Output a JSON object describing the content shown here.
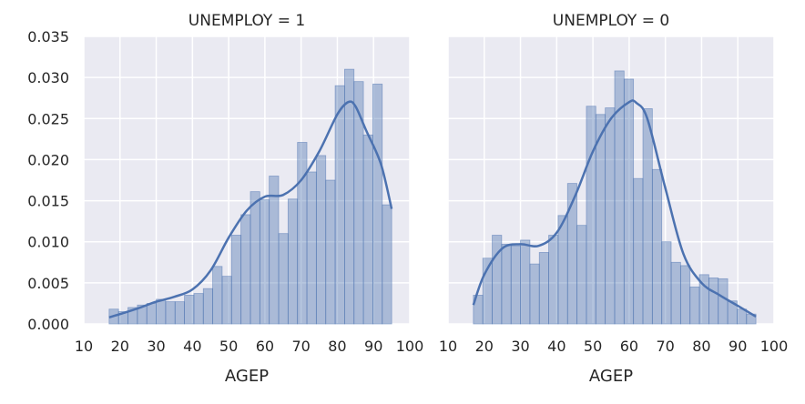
{
  "chart_data": [
    {
      "type": "histogram_kde",
      "title": "UNEMPLOY = 1",
      "xlabel": "AGEP",
      "ylabel": "",
      "xlim": [
        10,
        100
      ],
      "ylim": [
        0,
        0.035
      ],
      "xticks": [
        "10",
        "20",
        "30",
        "40",
        "50",
        "60",
        "70",
        "80",
        "90",
        "100"
      ],
      "yticks": [
        "0.000",
        "0.005",
        "0.010",
        "0.015",
        "0.020",
        "0.025",
        "0.030",
        "0.035"
      ],
      "grid": true,
      "bin_edges": [
        17,
        19.6,
        22.2,
        24.8,
        27.4,
        30,
        32.6,
        35.2,
        37.8,
        40.4,
        43,
        45.6,
        48.2,
        50.8,
        53.4,
        56,
        58.6,
        61.2,
        63.8,
        66.4,
        69,
        71.6,
        74.2,
        76.8,
        79.4,
        82,
        84.6,
        87.2,
        89.8,
        92.4,
        95
      ],
      "bar_heights": [
        0.0018,
        0.0015,
        0.002,
        0.0023,
        0.0025,
        0.003,
        0.0027,
        0.0027,
        0.0035,
        0.0037,
        0.0043,
        0.007,
        0.0058,
        0.0108,
        0.0133,
        0.0161,
        0.0151,
        0.018,
        0.011,
        0.0152,
        0.0221,
        0.0185,
        0.0205,
        0.0175,
        0.029,
        0.031,
        0.0295,
        0.023,
        0.0292,
        0.0145
      ],
      "kde": {
        "x": [
          17,
          20,
          25,
          30,
          35,
          40,
          45,
          50,
          55,
          60,
          65,
          70,
          75,
          80,
          83,
          85,
          88,
          92,
          95
        ],
        "y": [
          0.0008,
          0.0012,
          0.0019,
          0.0027,
          0.0033,
          0.0042,
          0.0065,
          0.0105,
          0.0138,
          0.0155,
          0.0157,
          0.0175,
          0.021,
          0.0255,
          0.027,
          0.0265,
          0.0235,
          0.0195,
          0.014
        ]
      }
    },
    {
      "type": "histogram_kde",
      "title": "UNEMPLOY = 0",
      "xlabel": "AGEP",
      "ylabel": "",
      "xlim": [
        10,
        100
      ],
      "ylim": [
        0,
        0.035
      ],
      "xticks": [
        "10",
        "20",
        "30",
        "40",
        "50",
        "60",
        "70",
        "80",
        "90",
        "100"
      ],
      "yticks": [],
      "grid": true,
      "bin_edges": [
        17,
        19.6,
        22.2,
        24.8,
        27.4,
        30,
        32.6,
        35.2,
        37.8,
        40.4,
        43,
        45.6,
        48.2,
        50.8,
        53.4,
        56,
        58.6,
        61.2,
        63.8,
        66.4,
        69,
        71.6,
        74.2,
        76.8,
        79.4,
        82,
        84.6,
        87.2,
        89.8,
        92.4,
        95
      ],
      "bar_heights": [
        0.0035,
        0.008,
        0.0108,
        0.0097,
        0.0095,
        0.0102,
        0.0073,
        0.0087,
        0.0108,
        0.0132,
        0.0171,
        0.012,
        0.0265,
        0.0255,
        0.0263,
        0.0308,
        0.0298,
        0.0177,
        0.0262,
        0.0188,
        0.01,
        0.0075,
        0.0071,
        0.0045,
        0.006,
        0.0056,
        0.0055,
        0.0028,
        0.0018,
        0.0012
      ],
      "kde": {
        "x": [
          17,
          20,
          25,
          30,
          35,
          40,
          45,
          50,
          55,
          60,
          62,
          65,
          70,
          75,
          80,
          85,
          90,
          95
        ],
        "y": [
          0.0023,
          0.006,
          0.0092,
          0.0097,
          0.0095,
          0.0111,
          0.0155,
          0.021,
          0.025,
          0.027,
          0.0269,
          0.025,
          0.0165,
          0.0085,
          0.005,
          0.0035,
          0.0022,
          0.0009
        ]
      }
    }
  ],
  "style": {
    "background": "#ffffff",
    "plot_background": "#eaeaf2",
    "grid_color": "#ffffff",
    "bar_fill": "#4c72b0",
    "bar_opacity": 0.4,
    "bar_edge": "#4c72b0",
    "kde_color": "#4c72b0"
  }
}
